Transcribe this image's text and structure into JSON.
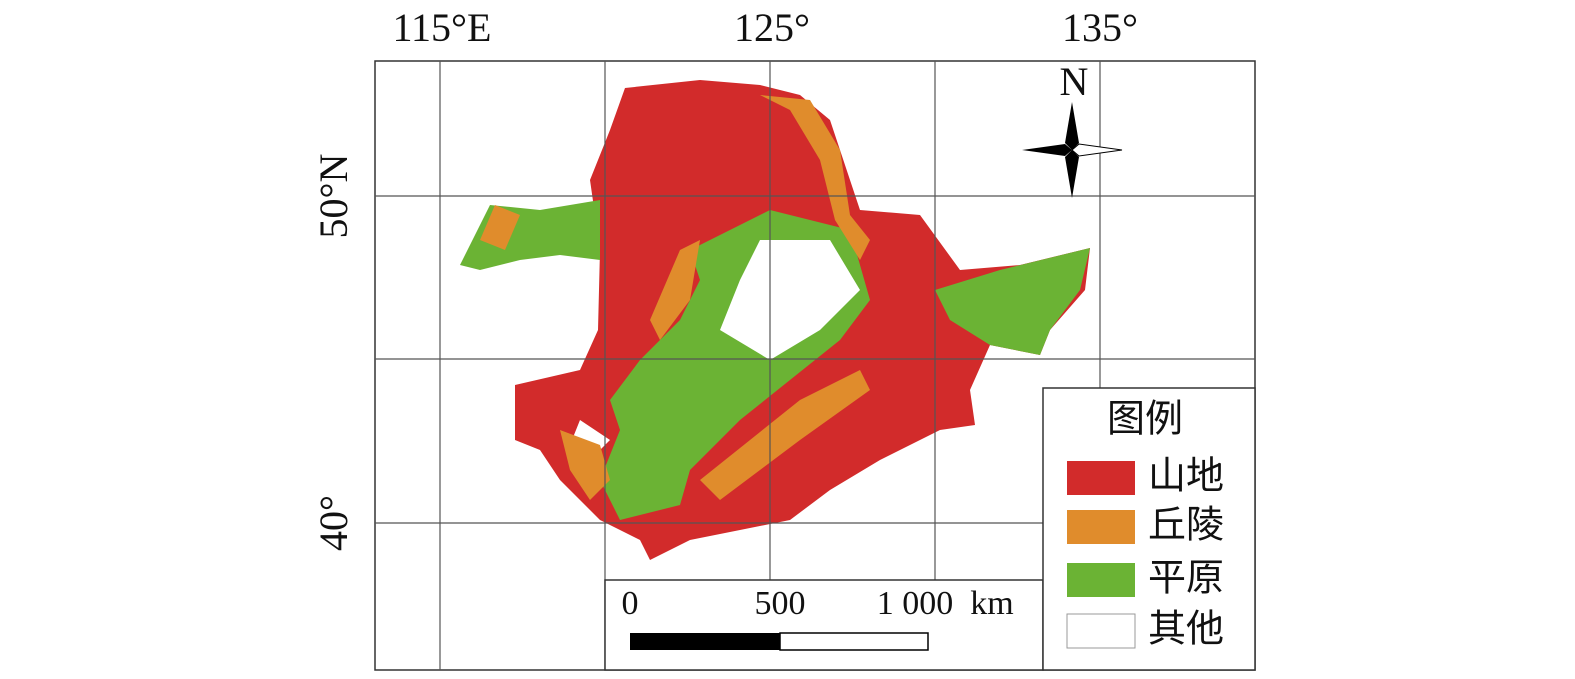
{
  "map": {
    "lon_labels": [
      "115°E",
      "125°",
      "135°"
    ],
    "lat_labels": [
      "50°N",
      "40°"
    ],
    "north": "N",
    "legend": {
      "title": "图例",
      "items": [
        {
          "label": "山地",
          "color": "#d22b2b"
        },
        {
          "label": "丘陵",
          "color": "#e08c2c"
        },
        {
          "label": "平原",
          "color": "#6bb334"
        },
        {
          "label": "其他",
          "color": "#ffffff"
        }
      ]
    },
    "scale": {
      "labels": [
        "0",
        "500",
        "1 000"
      ],
      "unit": "km"
    }
  }
}
